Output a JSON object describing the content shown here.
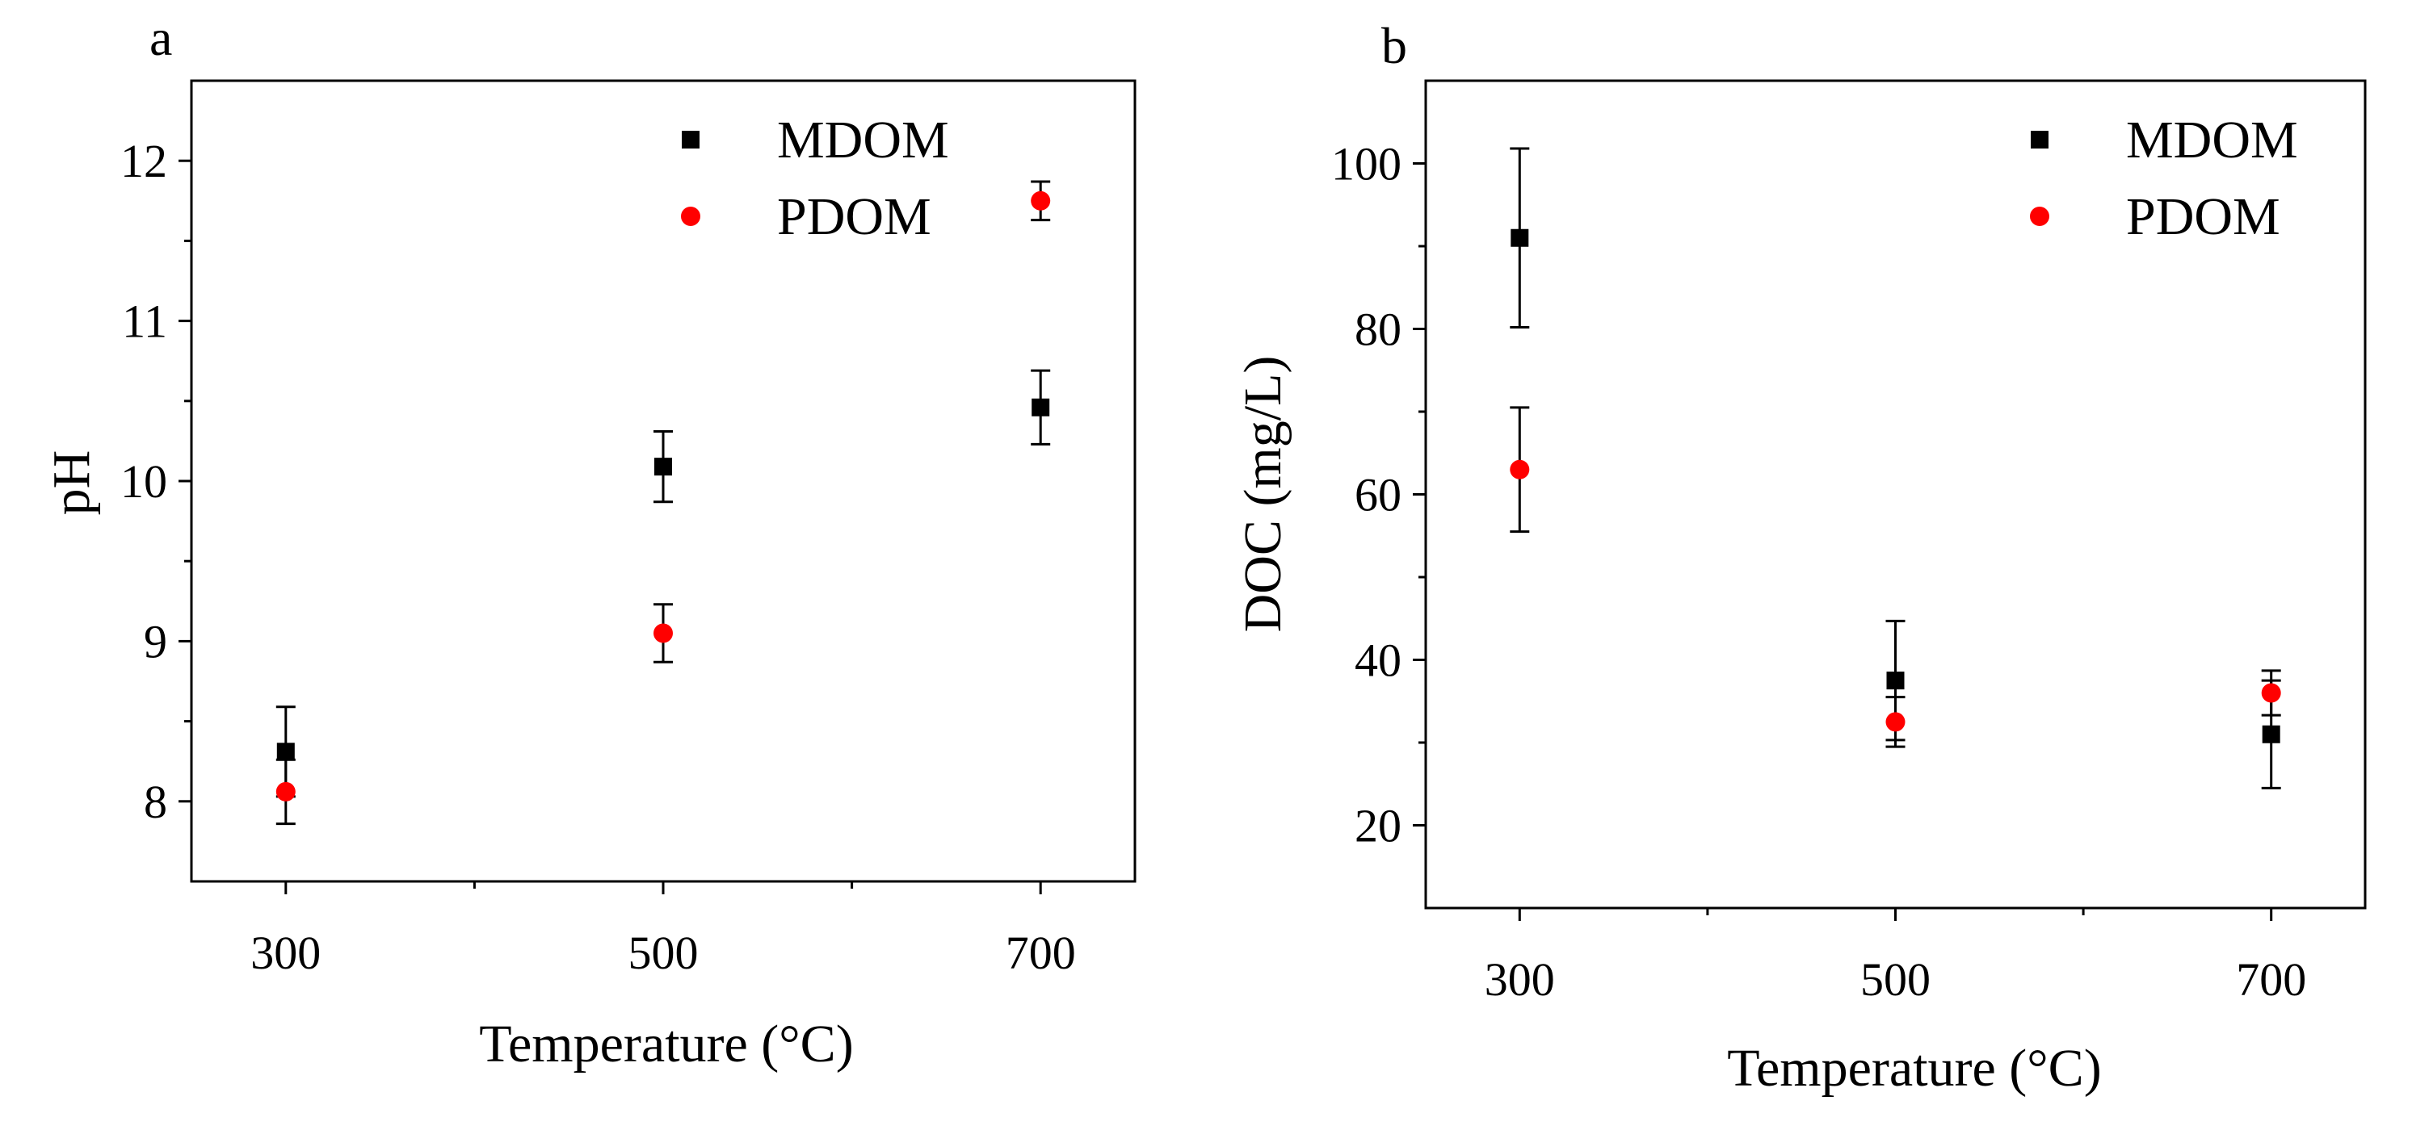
{
  "colors": {
    "MDOM": "#000000",
    "PDOM": "#ff0000",
    "axis": "#000000"
  },
  "chart_data": [
    {
      "type": "scatter",
      "panel": "a",
      "title": "",
      "xlabel": "Temperature (°C)",
      "ylabel": "pH",
      "xlim": [
        250,
        750
      ],
      "ylim": [
        7.5,
        12.5
      ],
      "xticks": [
        300,
        500,
        700
      ],
      "xticks_minor": [
        400,
        600
      ],
      "yticks": [
        8,
        9,
        10,
        11,
        12
      ],
      "grid": false,
      "legend_position": "top-right",
      "series": [
        {
          "name": "MDOM",
          "marker": "square",
          "color": "#000000",
          "x": [
            300,
            500,
            700
          ],
          "y": [
            8.31,
            10.09,
            10.46
          ],
          "err": [
            0.28,
            0.22,
            0.23
          ]
        },
        {
          "name": "PDOM",
          "marker": "circle",
          "color": "#ff0000",
          "x": [
            300,
            500,
            700
          ],
          "y": [
            8.06,
            9.05,
            11.75
          ],
          "err": [
            0.2,
            0.18,
            0.12
          ]
        }
      ]
    },
    {
      "type": "scatter",
      "panel": "b",
      "title": "",
      "xlabel": "Temperature (°C)",
      "ylabel": "DOC (mg/L)",
      "xlim": [
        250,
        750
      ],
      "ylim": [
        10,
        110
      ],
      "xticks": [
        300,
        500,
        700
      ],
      "xticks_minor": [
        400,
        600
      ],
      "yticks": [
        20,
        40,
        60,
        80,
        100
      ],
      "grid": false,
      "legend_position": "top-right",
      "series": [
        {
          "name": "MDOM",
          "marker": "square",
          "color": "#000000",
          "x": [
            300,
            500,
            700
          ],
          "y": [
            91,
            37.5,
            31
          ],
          "err": [
            10.8,
            7.2,
            6.5
          ]
        },
        {
          "name": "PDOM",
          "marker": "circle",
          "color": "#ff0000",
          "x": [
            300,
            500,
            700
          ],
          "y": [
            63,
            32.5,
            36
          ],
          "err": [
            7.5,
            3.0,
            2.7
          ]
        }
      ]
    }
  ]
}
